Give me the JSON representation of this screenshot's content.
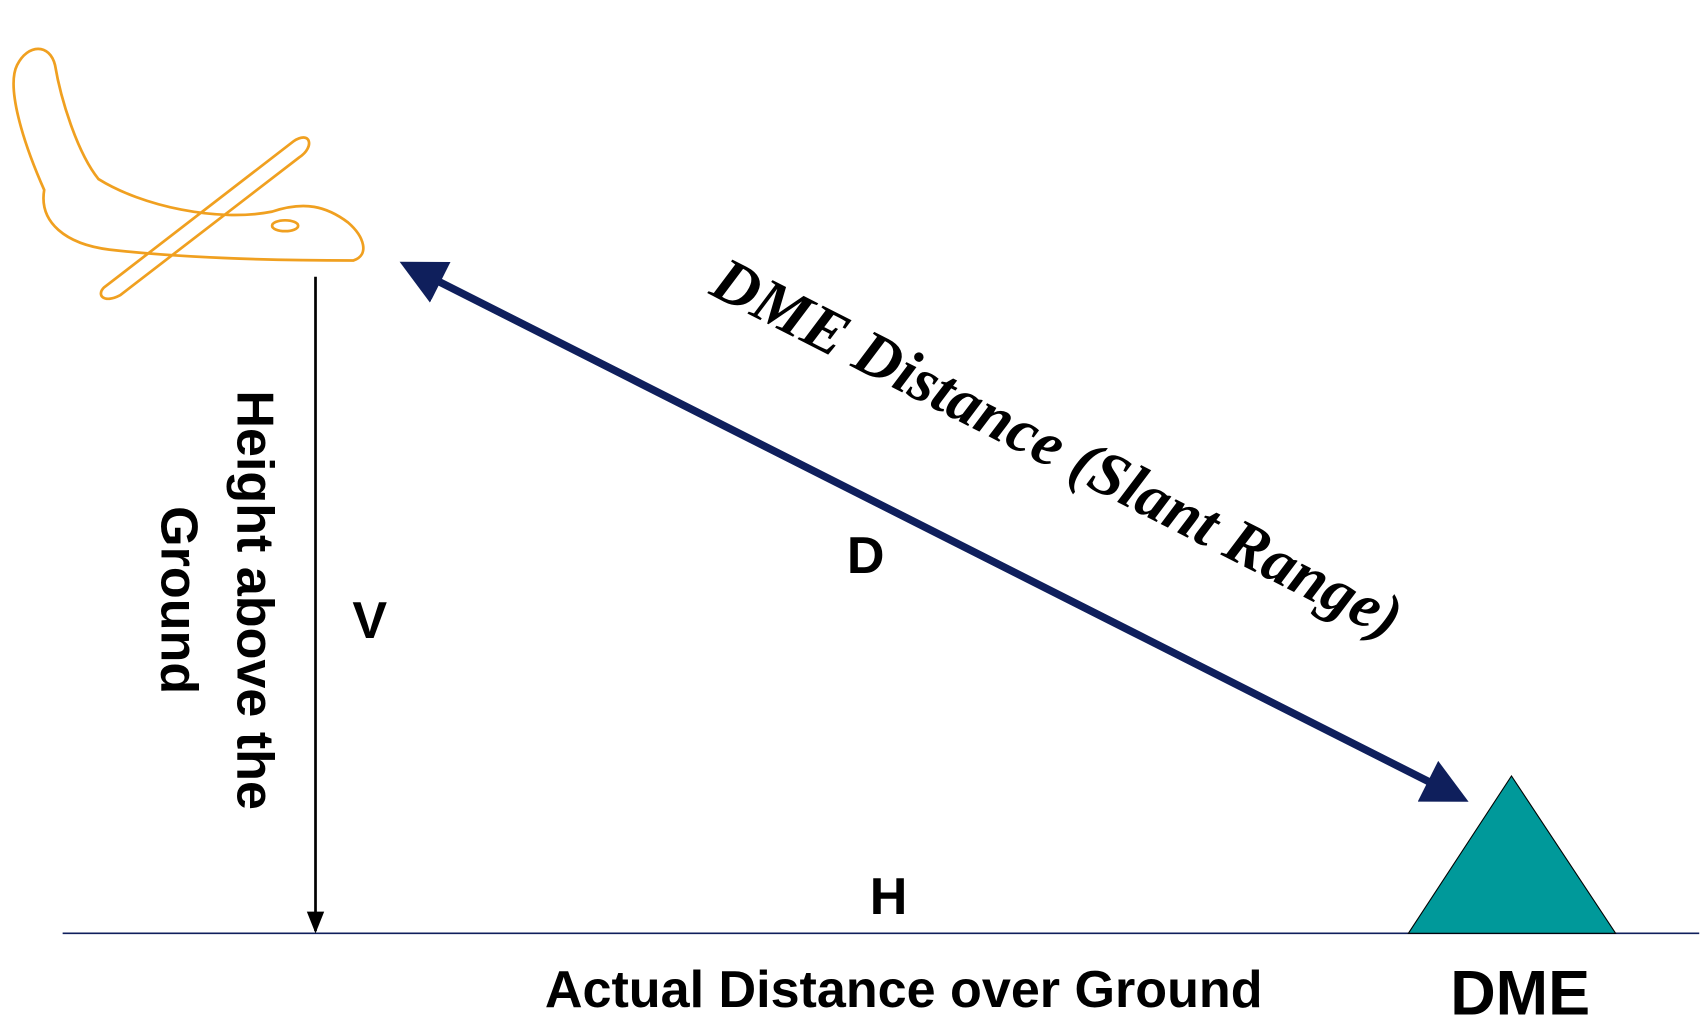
{
  "labels": {
    "slant_range": "DME Distance (Slant Range)",
    "d": "D",
    "v": "V",
    "h": "H",
    "height_line1": "Height above the",
    "height_line2": "Ground",
    "ground_distance": "Actual Distance over Ground",
    "dme": "DME"
  }
}
